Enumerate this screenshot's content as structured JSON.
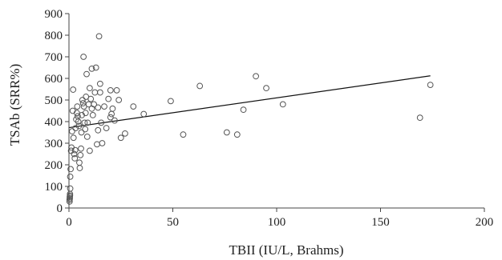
{
  "chart_data": {
    "type": "scatter",
    "xlabel": "TBII (IU/L, Brahms)",
    "ylabel": "TSAb (SRR%)",
    "xlim": [
      0,
      200
    ],
    "ylim": [
      0,
      900
    ],
    "x_ticks": [
      0,
      50,
      100,
      150,
      200
    ],
    "y_ticks": [
      0,
      100,
      200,
      300,
      400,
      500,
      600,
      700,
      800,
      900
    ],
    "x_tick_labels": [
      "0",
      "50",
      "100",
      "150",
      "200"
    ],
    "y_tick_labels": [
      "0",
      "100",
      "200",
      "300",
      "400",
      "500",
      "600",
      "700",
      "800",
      "900"
    ],
    "grid": false,
    "legend": "none",
    "marker": "open-circle",
    "colors": {
      "marker": "#555555",
      "axis": "#444444",
      "line": "#111111"
    },
    "trend_line": {
      "x": [
        0,
        174
      ],
      "y": [
        372,
        612
      ]
    },
    "points": [
      {
        "x": 0.3,
        "y": 30
      },
      {
        "x": 0.3,
        "y": 38
      },
      {
        "x": 0.4,
        "y": 45
      },
      {
        "x": 0.4,
        "y": 52
      },
      {
        "x": 0.5,
        "y": 58
      },
      {
        "x": 0.5,
        "y": 65
      },
      {
        "x": 0.6,
        "y": 90
      },
      {
        "x": 0.6,
        "y": 145
      },
      {
        "x": 0.8,
        "y": 180
      },
      {
        "x": 1.0,
        "y": 265
      },
      {
        "x": 1.2,
        "y": 280
      },
      {
        "x": 1.5,
        "y": 355
      },
      {
        "x": 1.8,
        "y": 450
      },
      {
        "x": 2.0,
        "y": 548
      },
      {
        "x": 2.2,
        "y": 325
      },
      {
        "x": 2.5,
        "y": 250
      },
      {
        "x": 2.8,
        "y": 230
      },
      {
        "x": 3.0,
        "y": 268
      },
      {
        "x": 3.2,
        "y": 370
      },
      {
        "x": 3.5,
        "y": 410
      },
      {
        "x": 3.8,
        "y": 440
      },
      {
        "x": 4.0,
        "y": 470
      },
      {
        "x": 4.2,
        "y": 425
      },
      {
        "x": 4.5,
        "y": 400
      },
      {
        "x": 4.8,
        "y": 380
      },
      {
        "x": 5.0,
        "y": 210
      },
      {
        "x": 5.2,
        "y": 185
      },
      {
        "x": 5.5,
        "y": 245
      },
      {
        "x": 5.8,
        "y": 275
      },
      {
        "x": 6.0,
        "y": 350
      },
      {
        "x": 6.2,
        "y": 430
      },
      {
        "x": 6.5,
        "y": 500
      },
      {
        "x": 6.8,
        "y": 485
      },
      {
        "x": 7.0,
        "y": 700
      },
      {
        "x": 7.2,
        "y": 470
      },
      {
        "x": 7.5,
        "y": 395
      },
      {
        "x": 7.8,
        "y": 365
      },
      {
        "x": 8.0,
        "y": 440
      },
      {
        "x": 8.2,
        "y": 515
      },
      {
        "x": 8.5,
        "y": 620
      },
      {
        "x": 8.8,
        "y": 330
      },
      {
        "x": 9.0,
        "y": 395
      },
      {
        "x": 9.5,
        "y": 480
      },
      {
        "x": 10.0,
        "y": 555
      },
      {
        "x": 10.0,
        "y": 265
      },
      {
        "x": 10.5,
        "y": 505
      },
      {
        "x": 11.0,
        "y": 460
      },
      {
        "x": 11.0,
        "y": 645
      },
      {
        "x": 11.5,
        "y": 430
      },
      {
        "x": 12.0,
        "y": 480
      },
      {
        "x": 12.5,
        "y": 535
      },
      {
        "x": 13.0,
        "y": 650
      },
      {
        "x": 13.5,
        "y": 295
      },
      {
        "x": 14.0,
        "y": 360
      },
      {
        "x": 14.0,
        "y": 465
      },
      {
        "x": 14.5,
        "y": 795
      },
      {
        "x": 15.0,
        "y": 575
      },
      {
        "x": 15.0,
        "y": 535
      },
      {
        "x": 15.5,
        "y": 395
      },
      {
        "x": 16.0,
        "y": 300
      },
      {
        "x": 17.0,
        "y": 470
      },
      {
        "x": 18.0,
        "y": 370
      },
      {
        "x": 19.0,
        "y": 505
      },
      {
        "x": 20.0,
        "y": 420
      },
      {
        "x": 20.0,
        "y": 545
      },
      {
        "x": 20.5,
        "y": 435
      },
      {
        "x": 21.0,
        "y": 460
      },
      {
        "x": 22.0,
        "y": 405
      },
      {
        "x": 23.0,
        "y": 545
      },
      {
        "x": 24.0,
        "y": 500
      },
      {
        "x": 25.0,
        "y": 325
      },
      {
        "x": 27.0,
        "y": 345
      },
      {
        "x": 31.0,
        "y": 470
      },
      {
        "x": 36.0,
        "y": 435
      },
      {
        "x": 49.0,
        "y": 495
      },
      {
        "x": 55.0,
        "y": 340
      },
      {
        "x": 63.0,
        "y": 565
      },
      {
        "x": 76.0,
        "y": 350
      },
      {
        "x": 81.0,
        "y": 340
      },
      {
        "x": 84.0,
        "y": 455
      },
      {
        "x": 90.0,
        "y": 610
      },
      {
        "x": 95.0,
        "y": 555
      },
      {
        "x": 103.0,
        "y": 480
      },
      {
        "x": 169.0,
        "y": 418
      },
      {
        "x": 174.0,
        "y": 570
      }
    ]
  }
}
